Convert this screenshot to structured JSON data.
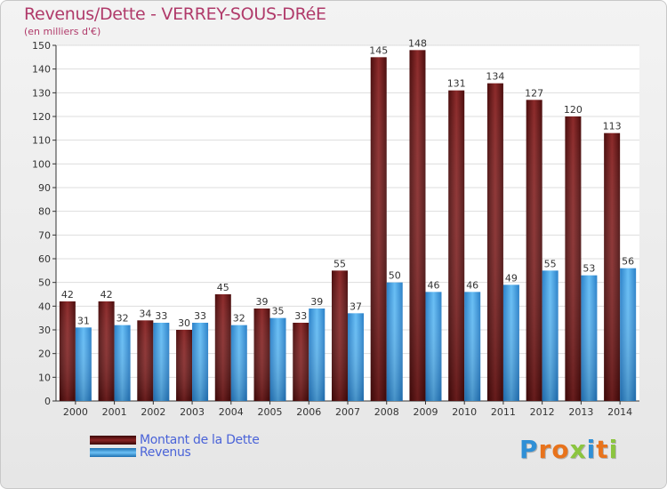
{
  "chart_data": {
    "type": "bar",
    "title": "Revenus/Dette - VERREY-SOUS-DRéE",
    "subtitle": "(en milliers d'€)",
    "categories": [
      "2000",
      "2001",
      "2002",
      "2003",
      "2004",
      "2005",
      "2006",
      "2007",
      "2008",
      "2009",
      "2010",
      "2011",
      "2012",
      "2013",
      "2014"
    ],
    "series": [
      {
        "name": "Montant de la Dette",
        "color": "#7a1d1d",
        "values": [
          42,
          42,
          34,
          30,
          45,
          39,
          33,
          55,
          145,
          148,
          131,
          134,
          127,
          120,
          113
        ]
      },
      {
        "name": "Revenus",
        "color": "#3f9be0",
        "values": [
          31,
          32,
          33,
          33,
          32,
          35,
          39,
          37,
          50,
          46,
          46,
          49,
          55,
          53,
          56
        ]
      }
    ],
    "ylim": [
      0,
      150
    ],
    "yticks": [
      0,
      10,
      20,
      30,
      40,
      50,
      60,
      70,
      80,
      90,
      100,
      110,
      120,
      130,
      140,
      150
    ],
    "grid": true,
    "legend_position": "bottom-left"
  },
  "brand": {
    "letters": [
      "P",
      "r",
      "o",
      "x",
      "i",
      "t",
      "i"
    ],
    "colors": [
      "#2f8fd6",
      "#e8731c",
      "#e8731c",
      "#8bc53f",
      "#2f8fd6",
      "#e8731c",
      "#8bc53f"
    ]
  }
}
